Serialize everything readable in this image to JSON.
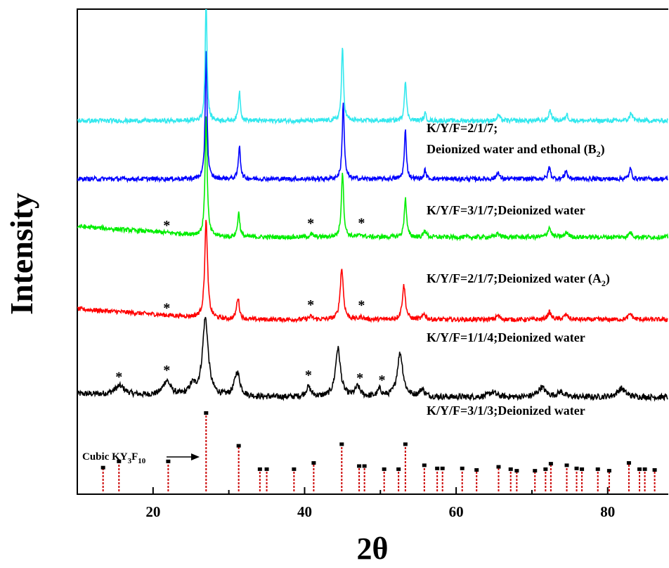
{
  "chart_data": {
    "type": "line",
    "title": "",
    "xlabel": "2θ",
    "ylabel": "Intensity",
    "xlim": [
      10,
      88
    ],
    "x_ticks": [
      20,
      40,
      60,
      80
    ],
    "x_tick_labels": [
      "20",
      "40",
      "60",
      "80"
    ],
    "y_ticks": "none",
    "grid": false,
    "legend": "inline labels to the right of each curve",
    "series": [
      {
        "label_lines": [
          "K/Y/F=3/1/3;Deionized water"
        ],
        "color": "#000000",
        "baseline": 0.2,
        "peaks": [
          [
            15.6,
            0.018,
            0.8
          ],
          [
            21.8,
            0.03,
            0.6
          ],
          [
            25.2,
            0.02,
            0.5
          ],
          [
            26.9,
            0.16,
            0.45
          ],
          [
            31.1,
            0.05,
            0.45
          ],
          [
            40.5,
            0.02,
            0.4
          ],
          [
            44.4,
            0.1,
            0.4
          ],
          [
            47.0,
            0.02,
            0.4
          ],
          [
            49.9,
            0.015,
            0.3
          ],
          [
            52.6,
            0.09,
            0.45
          ],
          [
            55.5,
            0.015,
            0.4
          ],
          [
            64.8,
            0.01,
            0.6
          ],
          [
            71.3,
            0.02,
            0.6
          ],
          [
            73.8,
            0.01,
            0.5
          ],
          [
            81.8,
            0.018,
            0.6
          ]
        ],
        "stars_x": [
          15.5,
          21.8,
          40.5,
          47.3,
          50.2
        ]
      },
      {
        "label_lines": [
          "K/Y/F=1/1/4;Deionized water"
        ],
        "color": "#ff0000",
        "baseline": 0.36,
        "peaks": [
          [
            27.0,
            0.2,
            0.22
          ],
          [
            31.2,
            0.045,
            0.22
          ],
          [
            40.8,
            0.006,
            0.3
          ],
          [
            44.9,
            0.105,
            0.25
          ],
          [
            47.5,
            0.005,
            0.3
          ],
          [
            53.1,
            0.07,
            0.25
          ],
          [
            55.8,
            0.012,
            0.22
          ],
          [
            65.5,
            0.008,
            0.3
          ],
          [
            72.3,
            0.015,
            0.3
          ],
          [
            74.5,
            0.01,
            0.3
          ],
          [
            83.0,
            0.012,
            0.3
          ]
        ],
        "stars_x": [
          21.8,
          40.8,
          47.5
        ]
      },
      {
        "label_lines": [
          "K/Y/F=2/1/7;Deionized water (A",
          "2",
          ")"
        ],
        "color": "#00ee00",
        "baseline": 0.53,
        "peaks": [
          [
            27.0,
            0.25,
            0.16
          ],
          [
            31.3,
            0.05,
            0.18
          ],
          [
            40.9,
            0.005,
            0.3
          ],
          [
            45.0,
            0.135,
            0.18
          ],
          [
            47.5,
            0.005,
            0.3
          ],
          [
            53.3,
            0.08,
            0.18
          ],
          [
            55.9,
            0.015,
            0.18
          ],
          [
            65.5,
            0.008,
            0.25
          ],
          [
            72.3,
            0.02,
            0.25
          ],
          [
            74.6,
            0.01,
            0.25
          ],
          [
            83.0,
            0.01,
            0.25
          ]
        ],
        "stars_x": [
          21.8,
          40.8,
          47.5
        ]
      },
      {
        "label_lines": [
          "K/Y/F=3/1/7;Deionized water"
        ],
        "color": "#0000ff",
        "baseline": 0.65,
        "peaks": [
          [
            27.0,
            0.27,
            0.14
          ],
          [
            31.4,
            0.07,
            0.16
          ],
          [
            45.1,
            0.16,
            0.16
          ],
          [
            53.3,
            0.1,
            0.16
          ],
          [
            55.9,
            0.018,
            0.16
          ],
          [
            65.5,
            0.015,
            0.18
          ],
          [
            72.3,
            0.025,
            0.18
          ],
          [
            74.5,
            0.018,
            0.18
          ],
          [
            83.0,
            0.022,
            0.18
          ]
        ],
        "stars_x": []
      },
      {
        "label_lines": [
          "K/Y/F=2/1/7;",
          "Deionized water and ethonal (B",
          "2",
          ")"
        ],
        "color": "#33e8ee",
        "baseline": 0.77,
        "peaks": [
          [
            27.0,
            0.255,
            0.14
          ],
          [
            31.4,
            0.06,
            0.16
          ],
          [
            45.0,
            0.15,
            0.16
          ],
          [
            53.3,
            0.085,
            0.16
          ],
          [
            55.9,
            0.015,
            0.16
          ],
          [
            65.6,
            0.012,
            0.2
          ],
          [
            72.4,
            0.022,
            0.2
          ],
          [
            74.6,
            0.013,
            0.2
          ],
          [
            83.1,
            0.017,
            0.2
          ]
        ],
        "stars_x": []
      }
    ],
    "reference": {
      "name_main": "Cubic KY",
      "name_sub1": "3",
      "name_mid": "F",
      "name_sub2": "10",
      "color": "#cc0000",
      "sticks": [
        [
          13.4,
          0.3
        ],
        [
          15.5,
          0.38
        ],
        [
          22.0,
          0.38
        ],
        [
          27.0,
          1.0
        ],
        [
          31.3,
          0.58
        ],
        [
          34.1,
          0.28
        ],
        [
          35.0,
          0.28
        ],
        [
          38.6,
          0.28
        ],
        [
          41.2,
          0.36
        ],
        [
          44.9,
          0.6
        ],
        [
          47.2,
          0.32
        ],
        [
          47.9,
          0.32
        ],
        [
          50.5,
          0.28
        ],
        [
          52.4,
          0.28
        ],
        [
          53.3,
          0.6
        ],
        [
          55.8,
          0.33
        ],
        [
          57.5,
          0.29
        ],
        [
          58.2,
          0.29
        ],
        [
          60.8,
          0.29
        ],
        [
          62.7,
          0.27
        ],
        [
          65.6,
          0.31
        ],
        [
          67.2,
          0.28
        ],
        [
          68.0,
          0.26
        ],
        [
          70.4,
          0.26
        ],
        [
          71.8,
          0.28
        ],
        [
          72.5,
          0.35
        ],
        [
          74.6,
          0.33
        ],
        [
          75.9,
          0.29
        ],
        [
          76.6,
          0.28
        ],
        [
          78.7,
          0.28
        ],
        [
          80.2,
          0.26
        ],
        [
          82.8,
          0.36
        ],
        [
          84.2,
          0.28
        ],
        [
          84.9,
          0.28
        ],
        [
          86.2,
          0.27
        ]
      ]
    }
  }
}
